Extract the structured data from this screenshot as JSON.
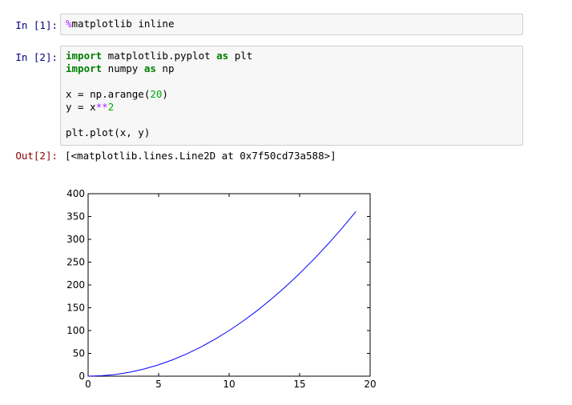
{
  "cells": [
    {
      "prompt": "In [1]:",
      "lines": [
        [
          {
            "t": "%",
            "c": "magic"
          },
          {
            "t": "matplotlib inline",
            "c": ""
          }
        ]
      ]
    },
    {
      "prompt": "In [2]:",
      "lines": [
        [
          {
            "t": "import",
            "c": "kw"
          },
          {
            "t": " matplotlib.pyplot ",
            "c": ""
          },
          {
            "t": "as",
            "c": "kw"
          },
          {
            "t": " plt",
            "c": ""
          }
        ],
        [
          {
            "t": "import",
            "c": "kw"
          },
          {
            "t": " numpy ",
            "c": ""
          },
          {
            "t": "as",
            "c": "kw"
          },
          {
            "t": " np",
            "c": ""
          }
        ],
        [],
        [
          {
            "t": "x = np.arange(",
            "c": ""
          },
          {
            "t": "20",
            "c": "num"
          },
          {
            "t": ")",
            "c": ""
          }
        ],
        [
          {
            "t": "y = x",
            "c": ""
          },
          {
            "t": "**",
            "c": "op"
          },
          {
            "t": "2",
            "c": "num"
          }
        ],
        [],
        [
          {
            "t": "plt.plot(x, y)",
            "c": ""
          }
        ]
      ]
    }
  ],
  "output": {
    "prompt": "Out[2]:",
    "text": "[<matplotlib.lines.Line2D at 0x7f50cd73a588>]"
  },
  "chart_data": {
    "type": "line",
    "x": [
      0,
      1,
      2,
      3,
      4,
      5,
      6,
      7,
      8,
      9,
      10,
      11,
      12,
      13,
      14,
      15,
      16,
      17,
      18,
      19
    ],
    "series": [
      {
        "values": [
          0,
          1,
          4,
          9,
          16,
          25,
          36,
          49,
          64,
          81,
          100,
          121,
          144,
          169,
          196,
          225,
          256,
          289,
          324,
          361
        ],
        "color": "#0000ff"
      }
    ],
    "xlim": [
      0,
      20
    ],
    "ylim": [
      0,
      400
    ],
    "xticks": [
      "0",
      "5",
      "10",
      "15",
      "20"
    ],
    "yticks": [
      "0",
      "50",
      "100",
      "150",
      "200",
      "250",
      "300",
      "350",
      "400"
    ],
    "title": "",
    "xlabel": "",
    "ylabel": ""
  }
}
